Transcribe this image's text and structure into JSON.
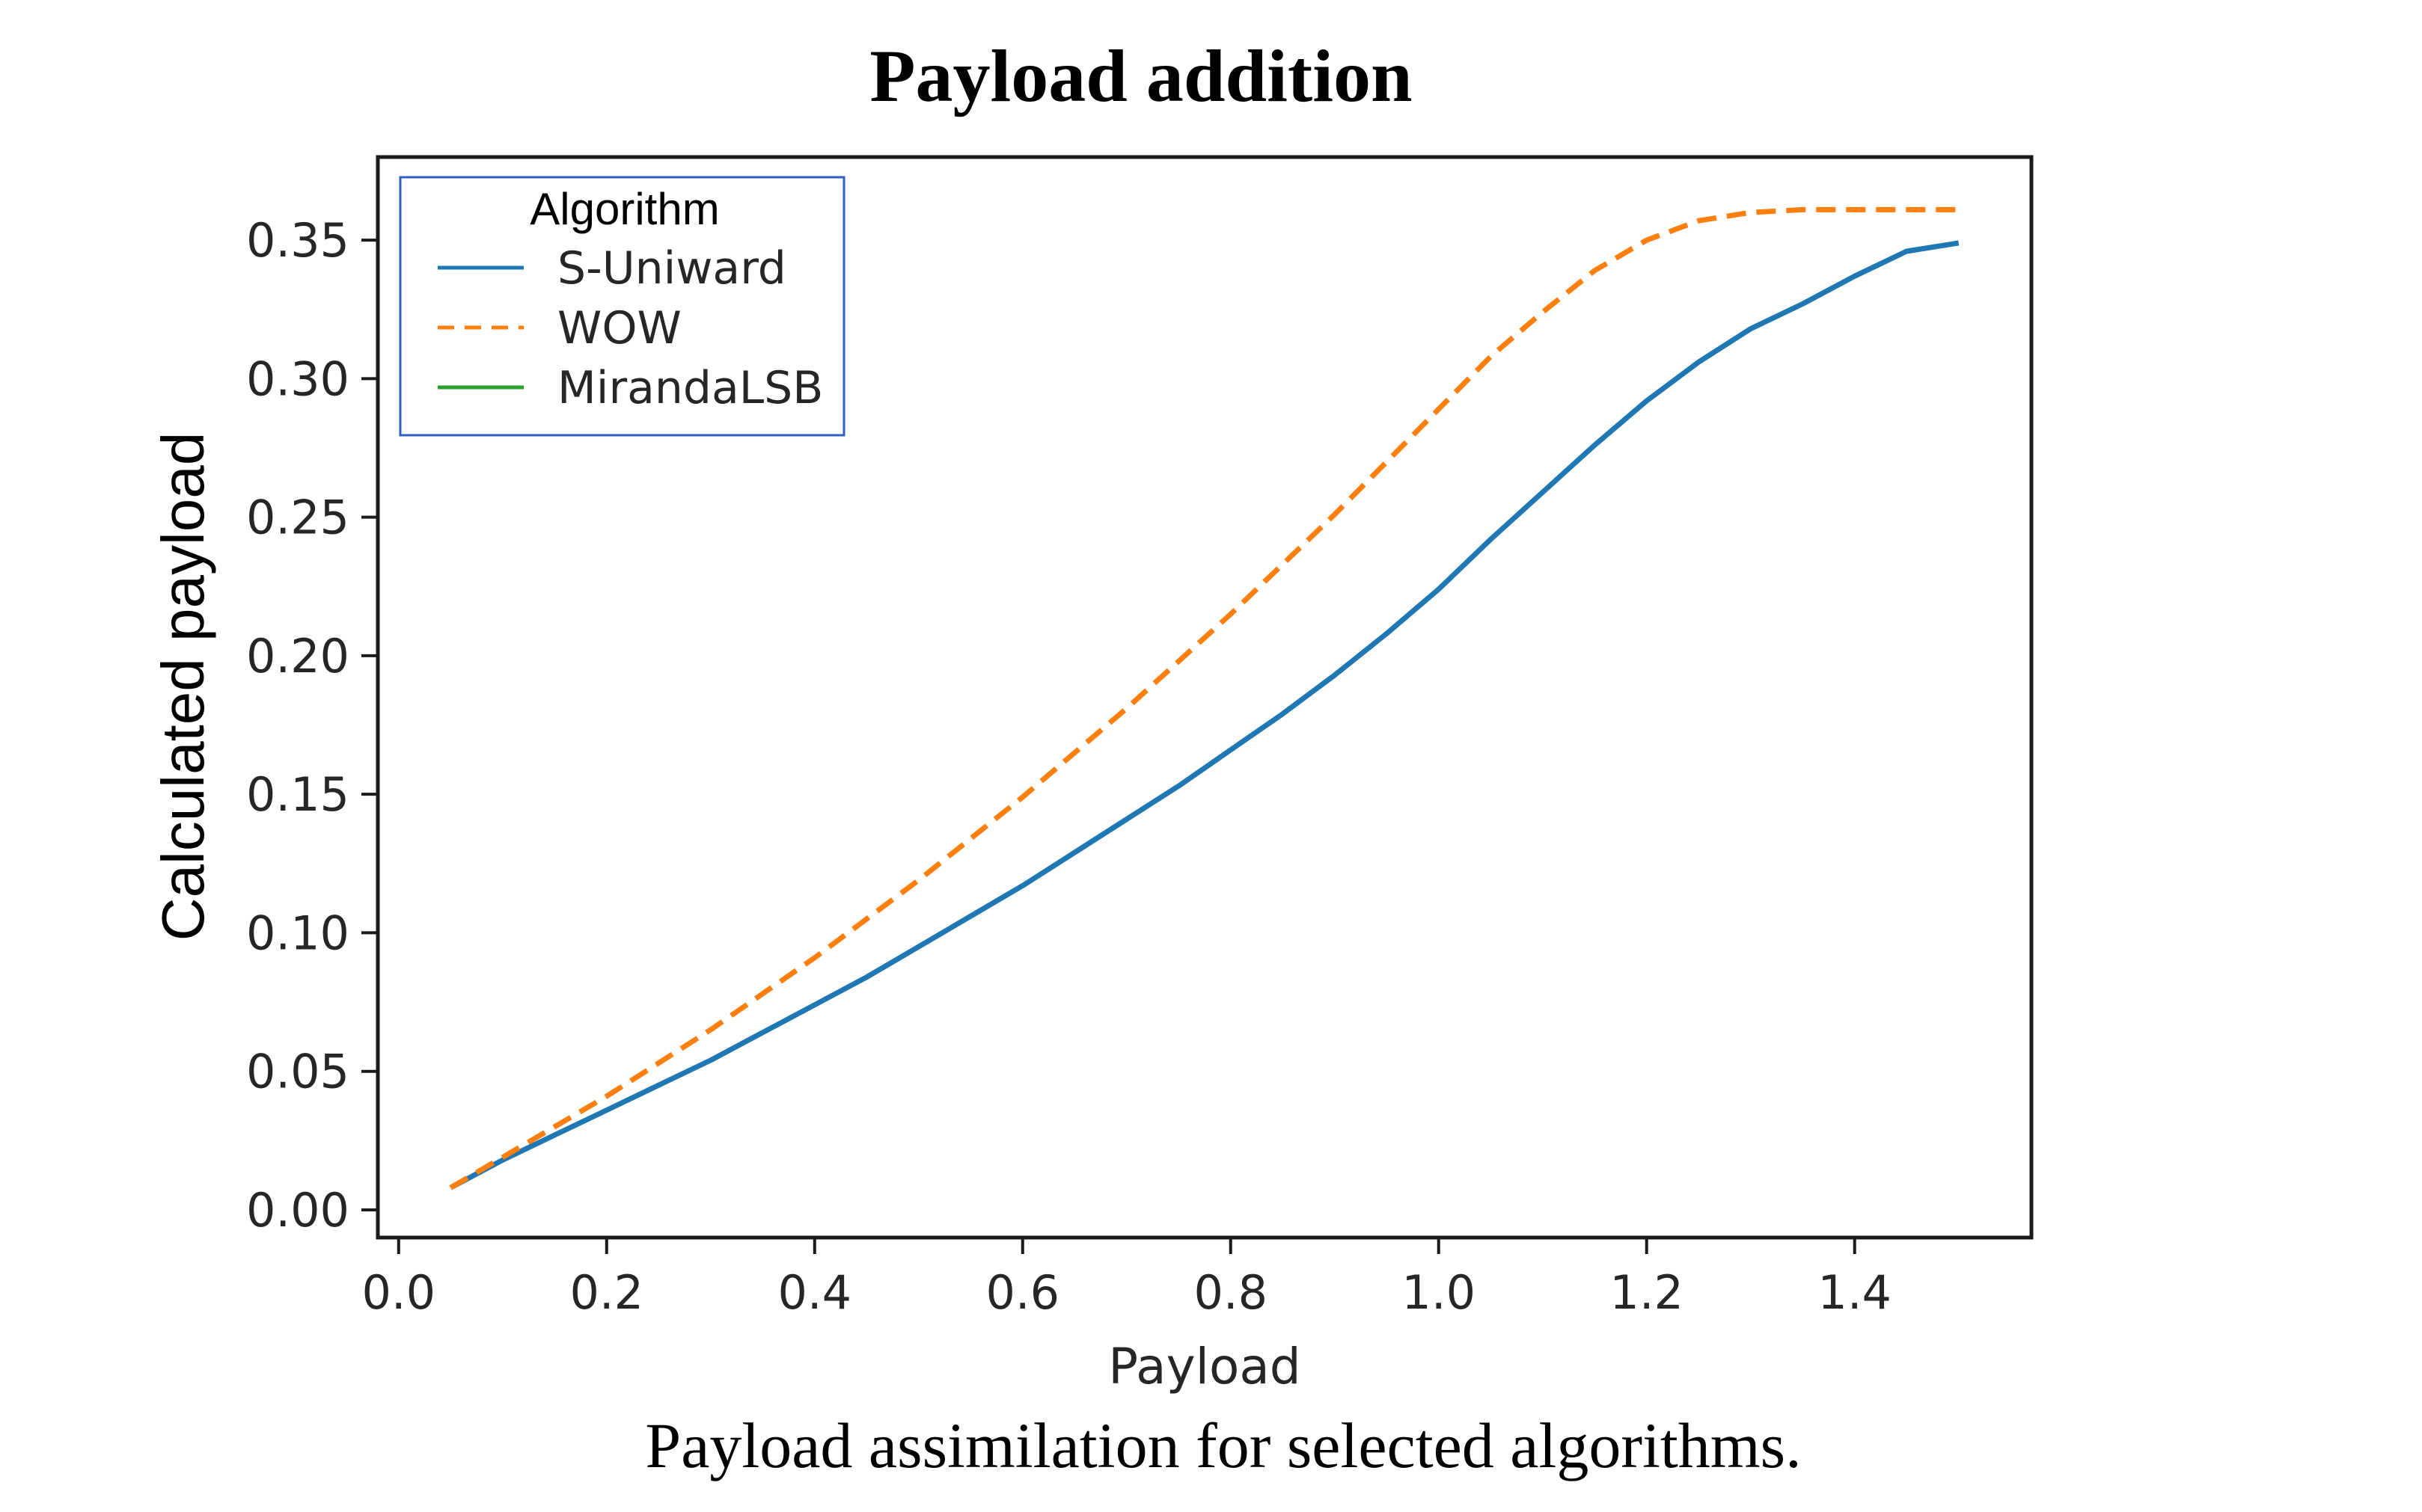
{
  "chart_data": {
    "type": "line",
    "title": "Payload addition",
    "caption": "Payload assimilation for selected algorithms.",
    "xlabel": "Payload",
    "ylabel": "Calculated payload",
    "xlim": [
      -0.02,
      1.57
    ],
    "ylim": [
      -0.01,
      0.38
    ],
    "xticks": [
      0.0,
      0.2,
      0.4,
      0.6,
      0.8,
      1.0,
      1.2,
      1.4
    ],
    "xtick_labels": [
      "0.0",
      "0.2",
      "0.4",
      "0.6",
      "0.8",
      "1.0",
      "1.2",
      "1.4"
    ],
    "yticks": [
      0.0,
      0.05,
      0.1,
      0.15,
      0.2,
      0.25,
      0.3,
      0.35
    ],
    "ytick_labels": [
      "0.00",
      "0.05",
      "0.10",
      "0.15",
      "0.20",
      "0.25",
      "0.30",
      "0.35"
    ],
    "grid": false,
    "legend": {
      "title": "Algorithm",
      "placement": "top-left"
    },
    "series": [
      {
        "name": "S-Uniward",
        "color": "#1f77b4",
        "style": "solid",
        "x": [
          0.05,
          0.1,
          0.15,
          0.2,
          0.25,
          0.3,
          0.35,
          0.4,
          0.45,
          0.5,
          0.55,
          0.6,
          0.65,
          0.7,
          0.75,
          0.8,
          0.85,
          0.9,
          0.95,
          1.0,
          1.05,
          1.1,
          1.15,
          1.2,
          1.25,
          1.3,
          1.35,
          1.4,
          1.45,
          1.5
        ],
        "y": [
          0.008,
          0.018,
          0.027,
          0.036,
          0.045,
          0.054,
          0.064,
          0.074,
          0.084,
          0.095,
          0.106,
          0.117,
          0.129,
          0.141,
          0.153,
          0.166,
          0.179,
          0.193,
          0.208,
          0.224,
          0.242,
          0.259,
          0.276,
          0.292,
          0.306,
          0.318,
          0.327,
          0.337,
          0.346,
          0.349
        ]
      },
      {
        "name": "WOW",
        "color": "#ff7f0e",
        "style": "dashed",
        "x": [
          0.05,
          0.1,
          0.15,
          0.2,
          0.25,
          0.3,
          0.35,
          0.4,
          0.45,
          0.5,
          0.55,
          0.6,
          0.65,
          0.7,
          0.75,
          0.8,
          0.85,
          0.9,
          0.95,
          1.0,
          1.05,
          1.1,
          1.15,
          1.2,
          1.25,
          1.3,
          1.35,
          1.4,
          1.45,
          1.5
        ],
        "y": [
          0.008,
          0.019,
          0.03,
          0.041,
          0.053,
          0.065,
          0.078,
          0.091,
          0.105,
          0.119,
          0.134,
          0.149,
          0.165,
          0.181,
          0.198,
          0.215,
          0.233,
          0.251,
          0.27,
          0.289,
          0.308,
          0.324,
          0.339,
          0.35,
          0.357,
          0.36,
          0.361,
          0.361,
          0.361,
          0.361
        ]
      },
      {
        "name": "MirandaLSB",
        "color": "#2ca02c",
        "style": "solid",
        "x": [],
        "y": []
      }
    ]
  }
}
